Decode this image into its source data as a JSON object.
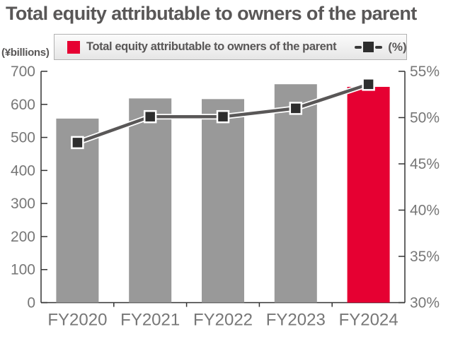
{
  "title": "Total equity attributable to owners of the parent",
  "y_axis_unit": "(¥billions)",
  "legend": {
    "bar_label": "Total equity attributable to owners of the parent",
    "line_label": "(%)"
  },
  "colors": {
    "bar_gray": "#999999",
    "bar_highlight_red": "#e60032",
    "line": "#595757",
    "line_casing": "#ffffff",
    "marker_fill": "#2e2e2e",
    "marker_stroke": "#ffffff",
    "axis": "#333333",
    "tick_label": "#777777",
    "title_text": "#595757"
  },
  "chart_data": {
    "type": "bar",
    "subtype": "combo-bar-line",
    "categories": [
      "FY2020",
      "FY2021",
      "FY2022",
      "FY2023",
      "FY2024"
    ],
    "series": [
      {
        "name": "Total equity attributable to owners of the parent",
        "type": "bar",
        "axis": "left",
        "unit": "¥billions",
        "values": [
          557,
          618,
          616,
          661,
          653
        ],
        "highlight_index": 4
      },
      {
        "name": "(%)",
        "type": "line",
        "axis": "right",
        "unit": "%",
        "values": [
          47.3,
          50.1,
          50.1,
          51.0,
          53.6
        ]
      }
    ],
    "left_axis": {
      "label": "(¥billions)",
      "min": 0,
      "max": 700,
      "step": 100
    },
    "right_axis": {
      "label": "(%)",
      "min": 30,
      "max": 55,
      "step": 5,
      "suffix": "%"
    },
    "grid": false,
    "legend_position": "top"
  }
}
